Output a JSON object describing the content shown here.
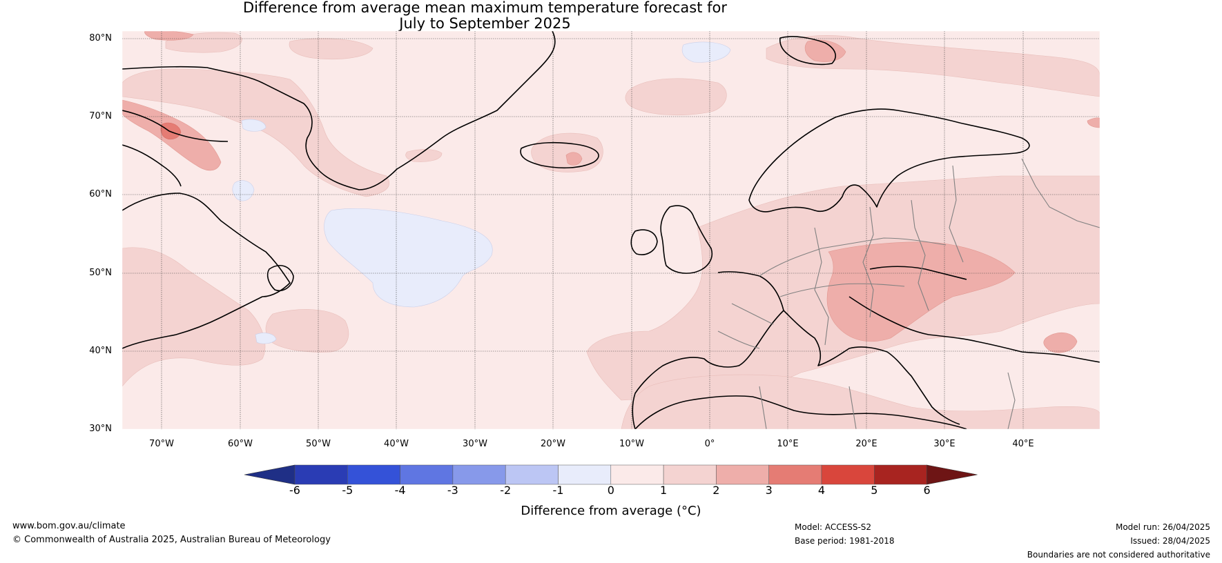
{
  "title_line1": "Difference from average mean maximum temperature forecast for",
  "title_line2": "July to September 2025",
  "lat_labels": [
    "80°N",
    "70°N",
    "60°N",
    "50°N",
    "40°N",
    "30°N"
  ],
  "lon_labels": [
    "70°W",
    "60°W",
    "50°W",
    "40°W",
    "30°W",
    "20°W",
    "10°W",
    "0°",
    "10°E",
    "20°E",
    "30°E",
    "40°E"
  ],
  "colorbar": {
    "label": "Difference from average (°C)",
    "ticks": [
      "-6",
      "-5",
      "-4",
      "-3",
      "-2",
      "-1",
      "0",
      "1",
      "2",
      "3",
      "4",
      "5",
      "6"
    ],
    "colors": [
      "#1f2f86",
      "#2a3cb4",
      "#3452d8",
      "#5f76e2",
      "#8799ea",
      "#bcc6f4",
      "#e8ecfb",
      "#fbeae9",
      "#f4d3d1",
      "#eeaeaa",
      "#e57c74",
      "#d9463c",
      "#a82420",
      "#6e1515"
    ]
  },
  "footer": {
    "left_line1": "www.bom.gov.au/climate",
    "left_line2": "© Commonwealth of Australia 2025, Australian Bureau of Meteorology",
    "model": "Model: ACCESS-S2",
    "base_period": "Base period: 1981-2018",
    "model_run": "Model run: 26/04/2025",
    "issued": "Issued: 28/04/2025",
    "disclaimer": "Boundaries are not considered authoritative"
  }
}
